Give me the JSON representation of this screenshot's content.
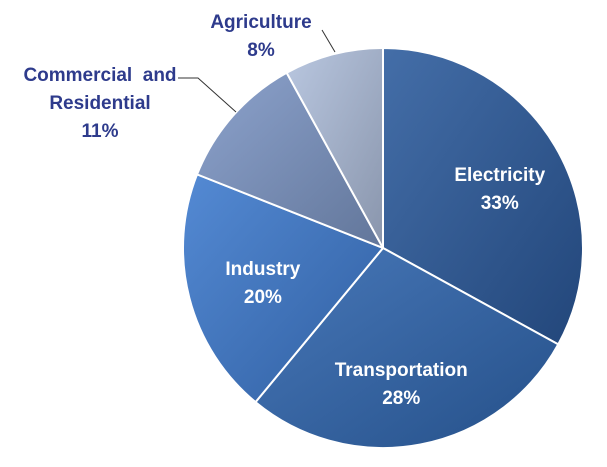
{
  "chart_data": {
    "type": "pie",
    "slices": [
      {
        "label": "Electricity",
        "value": 33,
        "value_label": "33%",
        "color": "#2b5a9c",
        "label_placement": "inside"
      },
      {
        "label": "Transportation",
        "value": 28,
        "value_label": "28%",
        "color": "#2f66b0",
        "label_placement": "inside"
      },
      {
        "label": "Industry",
        "value": 20,
        "value_label": "20%",
        "color": "#3d7ace",
        "label_placement": "inside"
      },
      {
        "label": "Commercial and Residential",
        "label_lines": [
          "Commercial  and",
          "Residential"
        ],
        "value": 11,
        "value_label": "11%",
        "color": "#7d97c6",
        "label_placement": "outside"
      },
      {
        "label": "Agriculture",
        "value": 8,
        "value_label": "8%",
        "color": "#b0bfdc",
        "label_placement": "outside"
      }
    ],
    "start_angle": "12 o'clock",
    "direction": "clockwise",
    "legend": "none",
    "colors": {
      "outside_label_text": "#2e3b8c",
      "inside_label_text": "#ffffff",
      "slice_border": "#ffffff",
      "leader_line": "#333333"
    }
  }
}
